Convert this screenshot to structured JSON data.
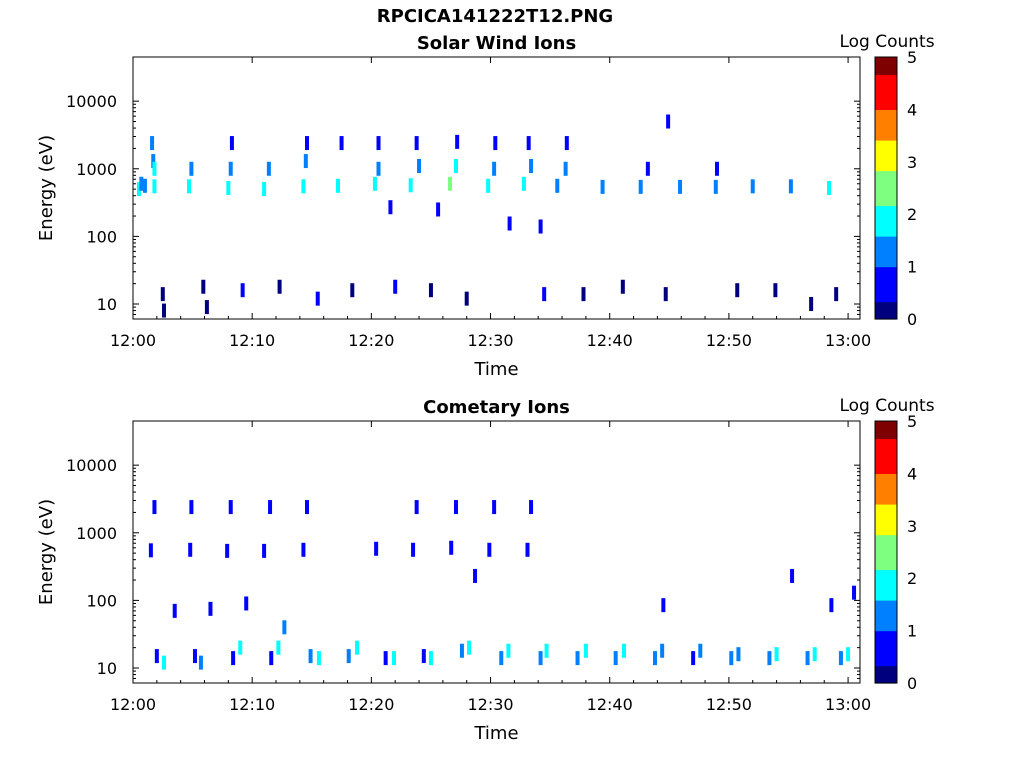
{
  "figure_title": "RPCICA141222T12.PNG",
  "colors": {
    "colormap": [
      "#00007f",
      "#0000ff",
      "#007fff",
      "#00ffff",
      "#7fff7f",
      "#ffff00",
      "#ff7f00",
      "#ff0000",
      "#7f0000"
    ]
  },
  "chart_data": [
    {
      "type": "heatmap",
      "title": "Solar Wind Ions",
      "xlabel": "Time",
      "ylabel": "Energy (eV)",
      "xlim": [
        "12:00",
        "13:01"
      ],
      "ylim": [
        6,
        45000
      ],
      "yscale": "log",
      "xticks": [
        "12:00",
        "12:10",
        "12:20",
        "12:30",
        "12:40",
        "12:50",
        "13:00"
      ],
      "yticks": [
        10,
        100,
        1000,
        10000
      ],
      "colorbar": {
        "label": "Log Counts",
        "range": [
          0,
          5
        ],
        "ticks": [
          0,
          1,
          2,
          3,
          4,
          5
        ]
      },
      "cells": [
        {
          "t": 0.5,
          "e": 500,
          "v": 1.8
        },
        {
          "t": 0.7,
          "e": 600,
          "v": 1.5
        },
        {
          "t": 1.0,
          "e": 560,
          "v": 1.3
        },
        {
          "t": 1.6,
          "e": 2400,
          "v": 1.0
        },
        {
          "t": 1.7,
          "e": 1300,
          "v": 1.4
        },
        {
          "t": 1.8,
          "e": 1000,
          "v": 1.6
        },
        {
          "t": 1.8,
          "e": 550,
          "v": 2.0
        },
        {
          "t": 2.5,
          "e": 14,
          "v": 0.3
        },
        {
          "t": 2.6,
          "e": 8,
          "v": 0.3
        },
        {
          "t": 4.7,
          "e": 550,
          "v": 1.6
        },
        {
          "t": 4.9,
          "e": 1000,
          "v": 1.1
        },
        {
          "t": 5.9,
          "e": 18,
          "v": 0.3
        },
        {
          "t": 6.2,
          "e": 9,
          "v": 0.3
        },
        {
          "t": 8.0,
          "e": 520,
          "v": 1.9
        },
        {
          "t": 8.2,
          "e": 1000,
          "v": 1.0
        },
        {
          "t": 8.3,
          "e": 2400,
          "v": 0.8
        },
        {
          "t": 9.2,
          "e": 16,
          "v": 0.4
        },
        {
          "t": 11.0,
          "e": 500,
          "v": 1.8
        },
        {
          "t": 11.4,
          "e": 1000,
          "v": 1.0
        },
        {
          "t": 12.3,
          "e": 18,
          "v": 0.3
        },
        {
          "t": 14.3,
          "e": 550,
          "v": 1.7
        },
        {
          "t": 14.5,
          "e": 1300,
          "v": 1.2
        },
        {
          "t": 14.6,
          "e": 2400,
          "v": 0.8
        },
        {
          "t": 15.5,
          "e": 12,
          "v": 0.4
        },
        {
          "t": 17.2,
          "e": 560,
          "v": 1.6
        },
        {
          "t": 17.5,
          "e": 2400,
          "v": 0.7
        },
        {
          "t": 18.4,
          "e": 16,
          "v": 0.3
        },
        {
          "t": 20.3,
          "e": 600,
          "v": 1.8
        },
        {
          "t": 20.6,
          "e": 1000,
          "v": 1.3
        },
        {
          "t": 20.6,
          "e": 2400,
          "v": 0.8
        },
        {
          "t": 22.0,
          "e": 18,
          "v": 0.4
        },
        {
          "t": 23.3,
          "e": 570,
          "v": 1.7
        },
        {
          "t": 23.8,
          "e": 2400,
          "v": 0.8
        },
        {
          "t": 24.0,
          "e": 1100,
          "v": 1.4
        },
        {
          "t": 25.0,
          "e": 16,
          "v": 0.3
        },
        {
          "t": 26.6,
          "e": 600,
          "v": 2.2
        },
        {
          "t": 27.1,
          "e": 1100,
          "v": 1.6
        },
        {
          "t": 27.2,
          "e": 2500,
          "v": 0.9
        },
        {
          "t": 28.0,
          "e": 12,
          "v": 0.3
        },
        {
          "t": 29.8,
          "e": 560,
          "v": 1.9
        },
        {
          "t": 30.3,
          "e": 1000,
          "v": 1.5
        },
        {
          "t": 30.4,
          "e": 2400,
          "v": 0.8
        },
        {
          "t": 32.8,
          "e": 600,
          "v": 1.9
        },
        {
          "t": 33.4,
          "e": 1100,
          "v": 1.5
        },
        {
          "t": 33.2,
          "e": 2400,
          "v": 0.8
        },
        {
          "t": 34.5,
          "e": 14,
          "v": 0.4
        },
        {
          "t": 35.6,
          "e": 560,
          "v": 1.4
        },
        {
          "t": 36.3,
          "e": 1000,
          "v": 1.0
        },
        {
          "t": 36.4,
          "e": 2400,
          "v": 0.7
        },
        {
          "t": 37.8,
          "e": 14,
          "v": 0.3
        },
        {
          "t": 39.4,
          "e": 540,
          "v": 1.3
        },
        {
          "t": 41.1,
          "e": 18,
          "v": 0.3
        },
        {
          "t": 42.6,
          "e": 540,
          "v": 1.5
        },
        {
          "t": 43.2,
          "e": 1000,
          "v": 0.8
        },
        {
          "t": 44.7,
          "e": 14,
          "v": 0.3
        },
        {
          "t": 45.9,
          "e": 540,
          "v": 1.4
        },
        {
          "t": 48.9,
          "e": 540,
          "v": 1.2
        },
        {
          "t": 49.0,
          "e": 1000,
          "v": 0.7
        },
        {
          "t": 50.7,
          "e": 16,
          "v": 0.3
        },
        {
          "t": 52.0,
          "e": 550,
          "v": 1.3
        },
        {
          "t": 53.9,
          "e": 16,
          "v": 0.3
        },
        {
          "t": 55.2,
          "e": 550,
          "v": 1.2
        },
        {
          "t": 56.9,
          "e": 10,
          "v": 0.3
        },
        {
          "t": 58.4,
          "e": 520,
          "v": 1.7
        },
        {
          "t": 59.0,
          "e": 14,
          "v": 0.3
        },
        {
          "t": 44.9,
          "e": 5000,
          "v": 0.6
        },
        {
          "t": 34.2,
          "e": 140,
          "v": 0.5
        },
        {
          "t": 31.6,
          "e": 155,
          "v": 0.5
        },
        {
          "t": 25.6,
          "e": 250,
          "v": 0.5
        },
        {
          "t": 21.6,
          "e": 270,
          "v": 0.5
        }
      ]
    },
    {
      "type": "heatmap",
      "title": "Cometary Ions",
      "xlabel": "Time",
      "ylabel": "Energy (eV)",
      "xlim": [
        "12:00",
        "13:01"
      ],
      "ylim": [
        6,
        45000
      ],
      "yscale": "log",
      "xticks": [
        "12:00",
        "12:10",
        "12:20",
        "12:30",
        "12:40",
        "12:50",
        "13:00"
      ],
      "yticks": [
        10,
        100,
        1000,
        10000
      ],
      "colorbar": {
        "label": "Log Counts",
        "range": [
          0,
          5
        ],
        "ticks": [
          0,
          1,
          2,
          3,
          4,
          5
        ]
      },
      "cells": [
        {
          "t": 2.0,
          "e": 15,
          "v": 0.8
        },
        {
          "t": 2.6,
          "e": 12,
          "v": 1.6
        },
        {
          "t": 5.2,
          "e": 15,
          "v": 0.9
        },
        {
          "t": 5.7,
          "e": 12,
          "v": 1.5
        },
        {
          "t": 8.4,
          "e": 14,
          "v": 0.9
        },
        {
          "t": 9.0,
          "e": 20,
          "v": 1.7
        },
        {
          "t": 11.6,
          "e": 14,
          "v": 0.8
        },
        {
          "t": 12.2,
          "e": 20,
          "v": 1.9
        },
        {
          "t": 14.9,
          "e": 15,
          "v": 1.0
        },
        {
          "t": 15.6,
          "e": 14,
          "v": 1.7
        },
        {
          "t": 18.1,
          "e": 15,
          "v": 1.0
        },
        {
          "t": 18.8,
          "e": 20,
          "v": 1.8
        },
        {
          "t": 21.2,
          "e": 14,
          "v": 0.9
        },
        {
          "t": 21.9,
          "e": 14,
          "v": 1.8
        },
        {
          "t": 24.4,
          "e": 15,
          "v": 0.9
        },
        {
          "t": 25.0,
          "e": 14,
          "v": 1.7
        },
        {
          "t": 27.6,
          "e": 18,
          "v": 1.1
        },
        {
          "t": 28.2,
          "e": 20,
          "v": 2.0
        },
        {
          "t": 30.9,
          "e": 14,
          "v": 1.0
        },
        {
          "t": 31.5,
          "e": 18,
          "v": 1.8
        },
        {
          "t": 34.2,
          "e": 14,
          "v": 1.1
        },
        {
          "t": 34.7,
          "e": 18,
          "v": 1.7
        },
        {
          "t": 37.3,
          "e": 14,
          "v": 1.1
        },
        {
          "t": 38.0,
          "e": 18,
          "v": 1.6
        },
        {
          "t": 40.5,
          "e": 14,
          "v": 1.0
        },
        {
          "t": 41.2,
          "e": 18,
          "v": 1.6
        },
        {
          "t": 43.8,
          "e": 14,
          "v": 1.1
        },
        {
          "t": 44.4,
          "e": 18,
          "v": 1.5
        },
        {
          "t": 47.0,
          "e": 14,
          "v": 0.9
        },
        {
          "t": 47.6,
          "e": 18,
          "v": 1.5
        },
        {
          "t": 50.2,
          "e": 14,
          "v": 1.0
        },
        {
          "t": 50.8,
          "e": 16,
          "v": 1.5
        },
        {
          "t": 53.4,
          "e": 14,
          "v": 1.0
        },
        {
          "t": 54.0,
          "e": 16,
          "v": 1.6
        },
        {
          "t": 56.6,
          "e": 14,
          "v": 1.0
        },
        {
          "t": 57.2,
          "e": 16,
          "v": 1.6
        },
        {
          "t": 59.4,
          "e": 14,
          "v": 1.0
        },
        {
          "t": 60.0,
          "e": 16,
          "v": 1.6
        },
        {
          "t": 1.5,
          "e": 550,
          "v": 0.9
        },
        {
          "t": 4.8,
          "e": 560,
          "v": 0.8
        },
        {
          "t": 7.9,
          "e": 540,
          "v": 0.8
        },
        {
          "t": 11.0,
          "e": 540,
          "v": 0.8
        },
        {
          "t": 14.3,
          "e": 560,
          "v": 0.8
        },
        {
          "t": 20.4,
          "e": 580,
          "v": 0.8
        },
        {
          "t": 23.5,
          "e": 560,
          "v": 0.8
        },
        {
          "t": 26.7,
          "e": 600,
          "v": 0.9
        },
        {
          "t": 29.9,
          "e": 560,
          "v": 0.8
        },
        {
          "t": 33.1,
          "e": 560,
          "v": 0.8
        },
        {
          "t": 1.8,
          "e": 2400,
          "v": 0.7
        },
        {
          "t": 4.9,
          "e": 2400,
          "v": 0.7
        },
        {
          "t": 8.2,
          "e": 2400,
          "v": 0.6
        },
        {
          "t": 11.5,
          "e": 2400,
          "v": 0.6
        },
        {
          "t": 14.6,
          "e": 2400,
          "v": 0.6
        },
        {
          "t": 23.8,
          "e": 2400,
          "v": 0.6
        },
        {
          "t": 27.1,
          "e": 2400,
          "v": 0.6
        },
        {
          "t": 30.3,
          "e": 2400,
          "v": 0.6
        },
        {
          "t": 33.4,
          "e": 2400,
          "v": 0.6
        },
        {
          "t": 3.5,
          "e": 70,
          "v": 0.6
        },
        {
          "t": 6.5,
          "e": 75,
          "v": 0.6
        },
        {
          "t": 9.5,
          "e": 90,
          "v": 0.6
        },
        {
          "t": 12.7,
          "e": 40,
          "v": 1.0
        },
        {
          "t": 28.7,
          "e": 230,
          "v": 0.7
        },
        {
          "t": 44.5,
          "e": 85,
          "v": 0.8
        },
        {
          "t": 55.3,
          "e": 230,
          "v": 0.6
        },
        {
          "t": 58.6,
          "e": 85,
          "v": 0.6
        },
        {
          "t": 60.5,
          "e": 130,
          "v": 0.6
        }
      ]
    }
  ]
}
